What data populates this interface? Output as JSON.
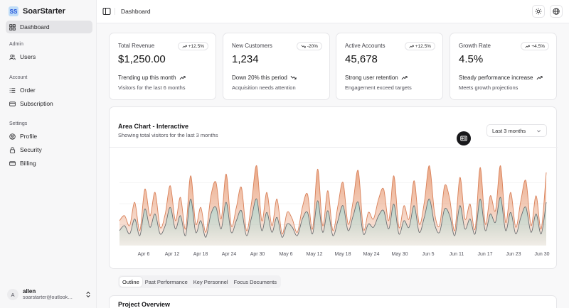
{
  "brand": {
    "logo_text": "SS",
    "name": "SoarStarter"
  },
  "sidebar": {
    "dashboard": "Dashboard",
    "groups": [
      {
        "label": "Admin",
        "items": [
          "Users"
        ]
      },
      {
        "label": "Account",
        "items": [
          "Order",
          "Subscription"
        ]
      },
      {
        "label": "Settings",
        "items": [
          "Profile",
          "Security",
          "Billing"
        ]
      }
    ],
    "user": {
      "initial": "A",
      "name": "allen",
      "email": "soarstarter@outlook.com"
    }
  },
  "header": {
    "breadcrumb": "Dashboard",
    "icons": [
      "sidebar-toggle-icon",
      "sun-icon",
      "globe-icon"
    ]
  },
  "stats": [
    {
      "title": "Total Revenue",
      "badge": "+12.5%",
      "badge_dir": "up",
      "value": "$1,250.00",
      "trend": "Trending up this month",
      "trend_dir": "up",
      "sub": "Visitors for the last 6 months"
    },
    {
      "title": "New Customers",
      "badge": "-20%",
      "badge_dir": "down",
      "value": "1,234",
      "trend": "Down 20% this period",
      "trend_dir": "down",
      "sub": "Acquisition needs attention"
    },
    {
      "title": "Active Accounts",
      "badge": "+12.5%",
      "badge_dir": "up",
      "value": "45,678",
      "trend": "Strong user retention",
      "trend_dir": "up",
      "sub": "Engagement exceed targets"
    },
    {
      "title": "Growth Rate",
      "badge": "+4.5%",
      "badge_dir": "up",
      "value": "4.5%",
      "trend": "Steady performance increase",
      "trend_dir": "up",
      "sub": "Meets growth projections"
    }
  ],
  "chart_card": {
    "title": "Area Chart - Interactive",
    "subtitle": "Showing total visitors for the last 3 months",
    "range": "Last 3 months"
  },
  "chart_data": {
    "type": "area",
    "stacked": true,
    "x_tick_labels": [
      "Apr 6",
      "Apr 12",
      "Apr 18",
      "Apr 24",
      "Apr 30",
      "May 6",
      "May 12",
      "May 18",
      "May 24",
      "May 30",
      "Jun 5",
      "Jun 11",
      "Jun 17",
      "Jun 23",
      "Jun 30"
    ],
    "series": [
      {
        "color": "#e9a27e",
        "values": [
          150,
          180,
          120,
          260,
          90,
          340,
          180,
          320,
          110,
          190,
          360,
          150,
          290,
          100,
          420,
          130,
          230,
          80,
          300,
          380,
          160,
          430,
          120,
          230,
          350,
          90,
          260,
          480,
          150,
          320,
          120,
          280,
          70,
          200,
          160,
          80,
          230,
          310,
          100,
          460,
          120,
          330,
          90,
          240,
          380,
          130,
          270,
          450,
          100,
          200,
          160,
          280,
          340,
          150,
          420,
          110,
          240,
          160,
          390,
          130,
          260,
          480,
          200,
          120,
          360,
          280,
          90,
          410,
          160,
          250,
          100,
          470,
          130,
          300,
          210,
          480,
          140,
          320,
          110,
          270,
          390,
          120,
          300,
          100,
          440
        ]
      },
      {
        "color": "#b5d8d1",
        "values": [
          90,
          120,
          70,
          160,
          60,
          220,
          110,
          190,
          70,
          120,
          230,
          100,
          180,
          60,
          280,
          80,
          150,
          50,
          190,
          230,
          100,
          260,
          80,
          150,
          210,
          60,
          170,
          280,
          90,
          200,
          80,
          170,
          50,
          130,
          110,
          60,
          160,
          200,
          70,
          270,
          80,
          210,
          60,
          150,
          240,
          90,
          180,
          260,
          70,
          130,
          110,
          180,
          210,
          100,
          250,
          70,
          150,
          110,
          240,
          80,
          170,
          280,
          130,
          80,
          220,
          180,
          60,
          240,
          100,
          160,
          70,
          280,
          90,
          190,
          140,
          290,
          90,
          200,
          70,
          170,
          230,
          80,
          190,
          70,
          260
        ]
      }
    ]
  },
  "tabs": [
    "Outline",
    "Past Performance",
    "Key Personnel",
    "Focus Documents"
  ],
  "section": {
    "title": "Project Overview"
  }
}
